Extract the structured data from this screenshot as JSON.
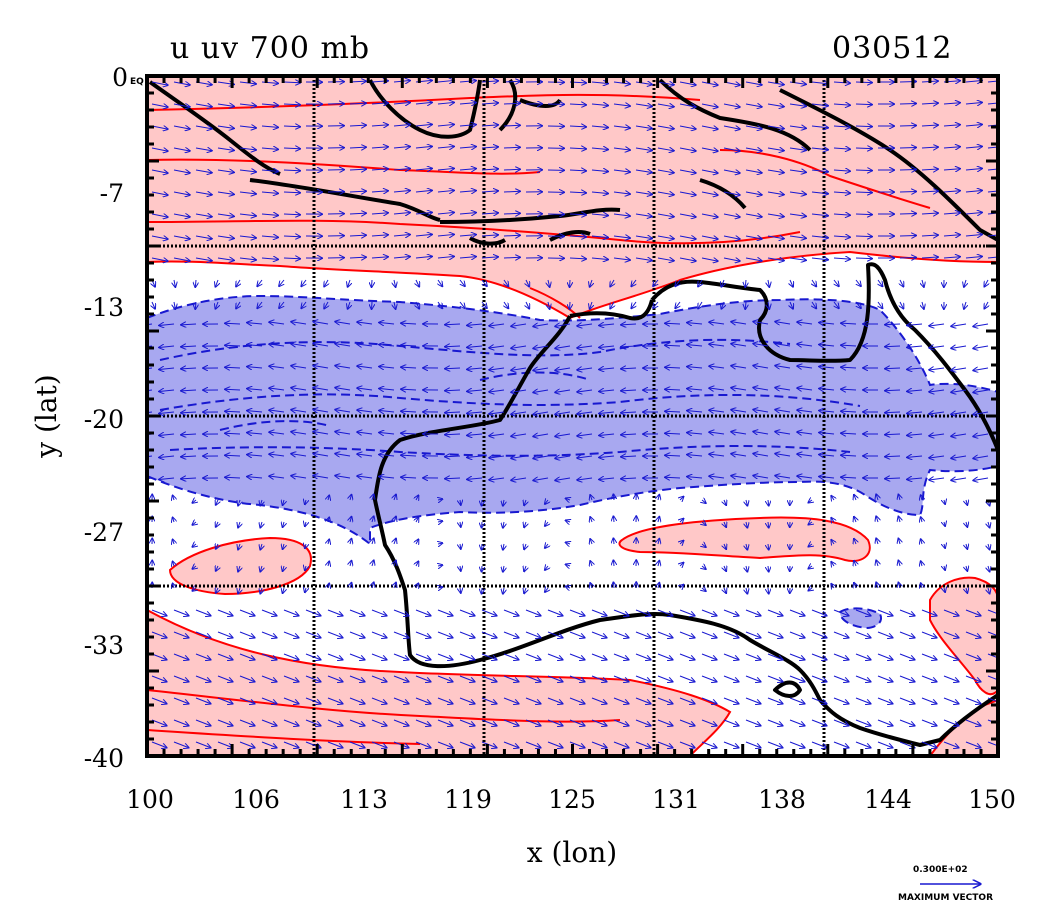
{
  "plot": {
    "title": "u uv 700 mb",
    "date": "030512",
    "xlabel": "x (lon)",
    "ylabel": "y (lat)",
    "x_ticks": [
      "100",
      "106",
      "113",
      "119",
      "125",
      "131",
      "138",
      "144",
      "150"
    ],
    "y_ticks": [
      "0",
      "-7",
      "-13",
      "-20",
      "-27",
      "-33",
      "-40"
    ],
    "y_top_suffix": "EQ",
    "xlim": [
      100,
      150
    ],
    "ylim": [
      -40,
      0
    ],
    "grid": "dotted lines every 10 degrees",
    "colors": {
      "positive_fill": "#ffc8c8",
      "positive_contour": "#ff0000",
      "negative_fill": "#a8a8f0",
      "negative_contour": "#1818d0",
      "vector": "#1818d0",
      "coastline": "#000000"
    }
  },
  "legend": {
    "magnitude": "0.300E+02",
    "label": "MAXIMUM VECTOR"
  }
}
